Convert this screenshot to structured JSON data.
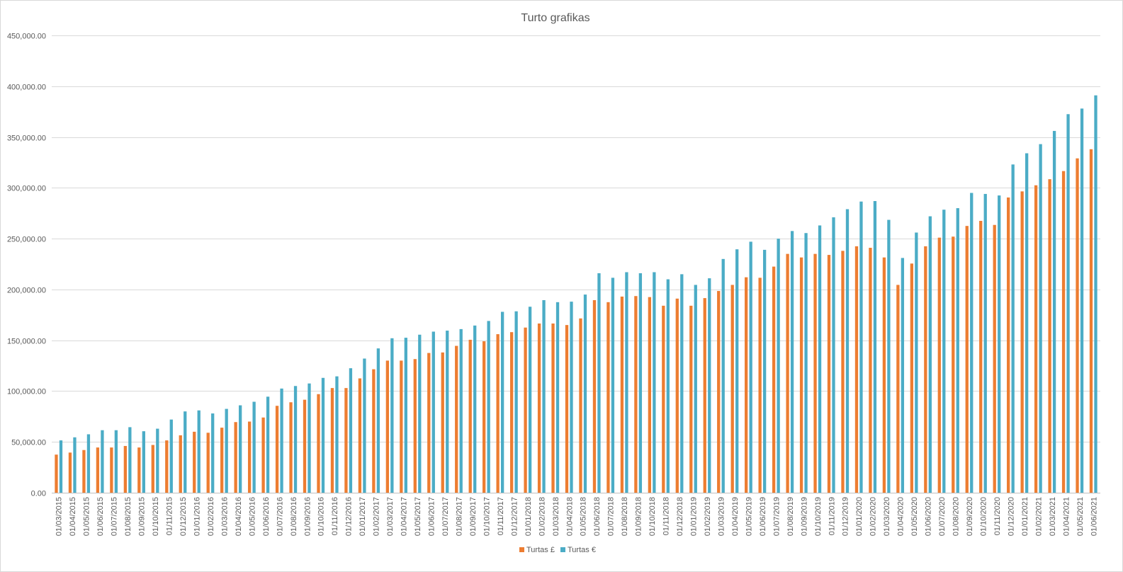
{
  "chart_data": {
    "type": "bar",
    "title": "Turto grafikas",
    "xlabel": "",
    "ylabel": "",
    "ylim": [
      0,
      450000
    ],
    "yticks": [
      0,
      50000,
      100000,
      150000,
      200000,
      250000,
      300000,
      350000,
      400000,
      450000
    ],
    "ytick_labels": [
      "0.00",
      "50,000.00",
      "100,000.00",
      "150,000.00",
      "200,000.00",
      "250,000.00",
      "300,000.00",
      "350,000.00",
      "400,000.00",
      "450,000.00"
    ],
    "grid": true,
    "legend_position": "bottom",
    "categories": [
      "01/03/2015",
      "01/04/2015",
      "01/05/2015",
      "01/06/2015",
      "01/07/2015",
      "01/08/2015",
      "01/09/2015",
      "01/10/2015",
      "01/11/2015",
      "01/12/2015",
      "01/01/2016",
      "01/02/2016",
      "01/03/2016",
      "01/04/2016",
      "01/05/2016",
      "01/06/2016",
      "01/07/2016",
      "01/08/2016",
      "01/09/2016",
      "01/10/2016",
      "01/11/2016",
      "01/12/2016",
      "01/01/2017",
      "01/02/2017",
      "01/03/2017",
      "01/04/2017",
      "01/05/2017",
      "01/06/2017",
      "01/07/2017",
      "01/08/2017",
      "01/09/2017",
      "01/10/2017",
      "01/11/2017",
      "01/12/2017",
      "01/01/2018",
      "01/02/2018",
      "01/03/2018",
      "01/04/2018",
      "01/05/2018",
      "01/06/2018",
      "01/07/2018",
      "01/08/2018",
      "01/09/2018",
      "01/10/2018",
      "01/11/2018",
      "01/12/2018",
      "01/01/2019",
      "01/02/2019",
      "01/03/2019",
      "01/04/2019",
      "01/05/2019",
      "01/06/2019",
      "01/07/2019",
      "01/08/2019",
      "01/09/2019",
      "01/10/2019",
      "01/11/2019",
      "01/12/2019",
      "01/01/2020",
      "01/02/2020",
      "01/03/2020",
      "01/04/2020",
      "01/05/2020",
      "01/06/2020",
      "01/07/2020",
      "01/08/2020",
      "01/09/2020",
      "01/10/2020",
      "01/11/2020",
      "01/12/2020",
      "01/01/2021",
      "01/02/2021",
      "01/03/2021",
      "01/04/2021",
      "01/05/2021",
      "01/06/2021"
    ],
    "series": [
      {
        "name": "Turtas £",
        "color": "#ed7d31",
        "values": [
          37500,
          39500,
          42000,
          44500,
          44500,
          46000,
          44500,
          47000,
          51500,
          56500,
          60000,
          59000,
          64000,
          69500,
          70000,
          74000,
          85500,
          89000,
          91500,
          97000,
          103000,
          103000,
          112500,
          121500,
          130000,
          130000,
          131500,
          137500,
          138000,
          144500,
          150500,
          149000,
          156000,
          158000,
          162500,
          166500,
          166500,
          165000,
          171500,
          189500,
          187500,
          193000,
          193500,
          192500,
          184000,
          191000,
          184000,
          191500,
          198500,
          204500,
          212000,
          211500,
          222500,
          235000,
          231500,
          235000,
          234000,
          238000,
          242500,
          241000,
          231500,
          204500,
          225500,
          242500,
          251000,
          252000,
          262500,
          267500,
          263500,
          290500,
          296500,
          302500,
          308500,
          316500,
          329000,
          338000
        ]
      },
      {
        "name": "Turtas €",
        "color": "#4bacc6",
        "values": [
          51500,
          54500,
          57500,
          61500,
          61500,
          64500,
          60500,
          63000,
          72000,
          80000,
          81000,
          78000,
          82500,
          86000,
          89500,
          94500,
          102500,
          105000,
          107500,
          113000,
          114500,
          122500,
          132000,
          142000,
          152000,
          152500,
          155500,
          158500,
          159500,
          161000,
          164500,
          169000,
          178000,
          178500,
          183000,
          189500,
          187500,
          188000,
          195000,
          216000,
          211500,
          217000,
          216000,
          217000,
          210000,
          215000,
          204500,
          211000,
          230000,
          239500,
          247000,
          239000,
          250000,
          257500,
          255500,
          263000,
          271000,
          279000,
          286500,
          287000,
          268500,
          231000,
          256000,
          272000,
          278500,
          280000,
          295000,
          294000,
          292500,
          323000,
          334000,
          343000,
          356000,
          372500,
          378000,
          391000
        ]
      }
    ]
  }
}
